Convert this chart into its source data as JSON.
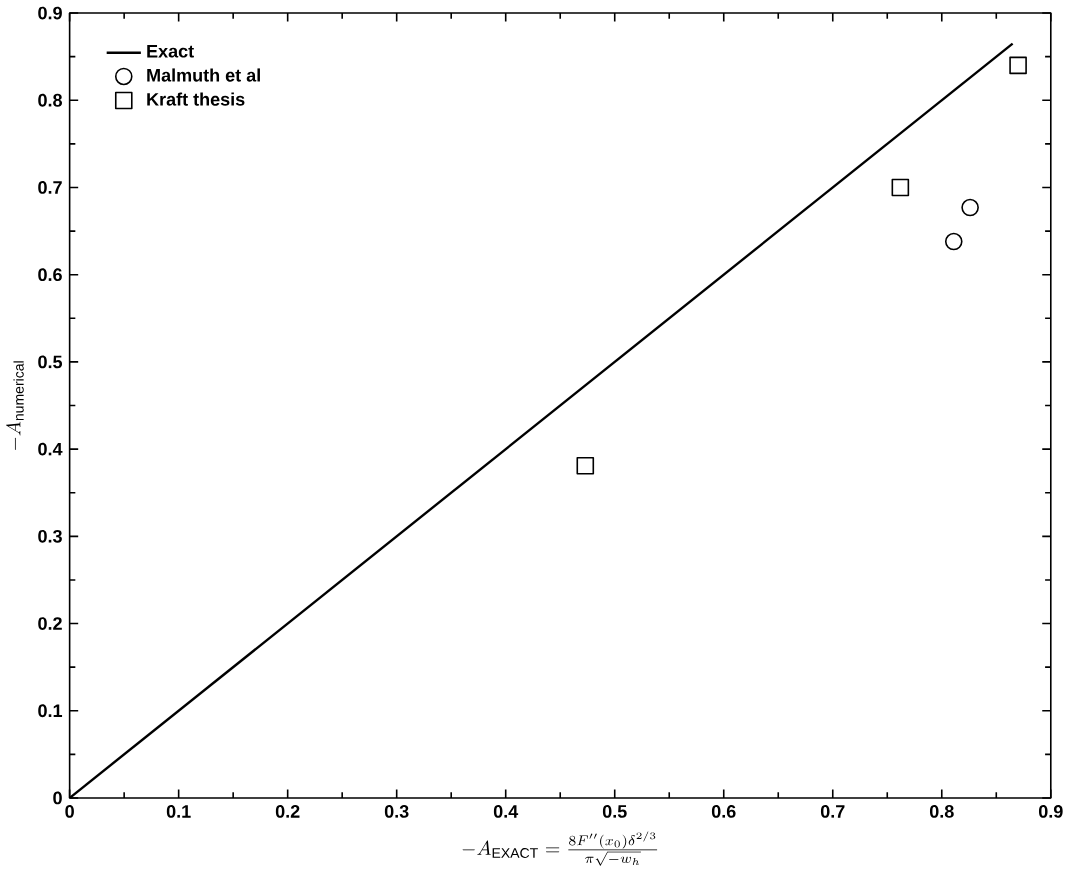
{
  "chart_data": {
    "type": "scatter",
    "xlabel": "-A_{\\mathrm{EXACT}} = \\frac{8F''(x_0)\\delta^{2/3}}{\\pi\\sqrt{-w_h}}",
    "ylabel": "-A_{\\mathrm{numerical}}",
    "xlim": [
      0,
      0.9
    ],
    "ylim": [
      0,
      0.9
    ],
    "xticks": [
      0,
      0.1,
      0.2,
      0.3,
      0.4,
      0.5,
      0.6,
      0.7,
      0.8,
      0.9
    ],
    "yticks": [
      0,
      0.1,
      0.2,
      0.3,
      0.4,
      0.5,
      0.6,
      0.7,
      0.8,
      0.9
    ],
    "legend": "top left",
    "series": [
      {
        "name": "Exact",
        "type": "line",
        "color": "#000000",
        "marker": "none",
        "x": [
          0,
          0.865
        ],
        "values": [
          0,
          0.865
        ]
      },
      {
        "name": "Malmuth et al",
        "type": "scatter",
        "color": "#000000",
        "marker": "circle",
        "x": [
          0.811,
          0.826
        ],
        "values": [
          0.638,
          0.677
        ]
      },
      {
        "name": "Kraft thesis",
        "type": "scatter",
        "color": "#000000",
        "marker": "square",
        "x": [
          0.473,
          0.762,
          0.87
        ],
        "values": [
          0.381,
          0.7,
          0.84
        ]
      }
    ]
  }
}
